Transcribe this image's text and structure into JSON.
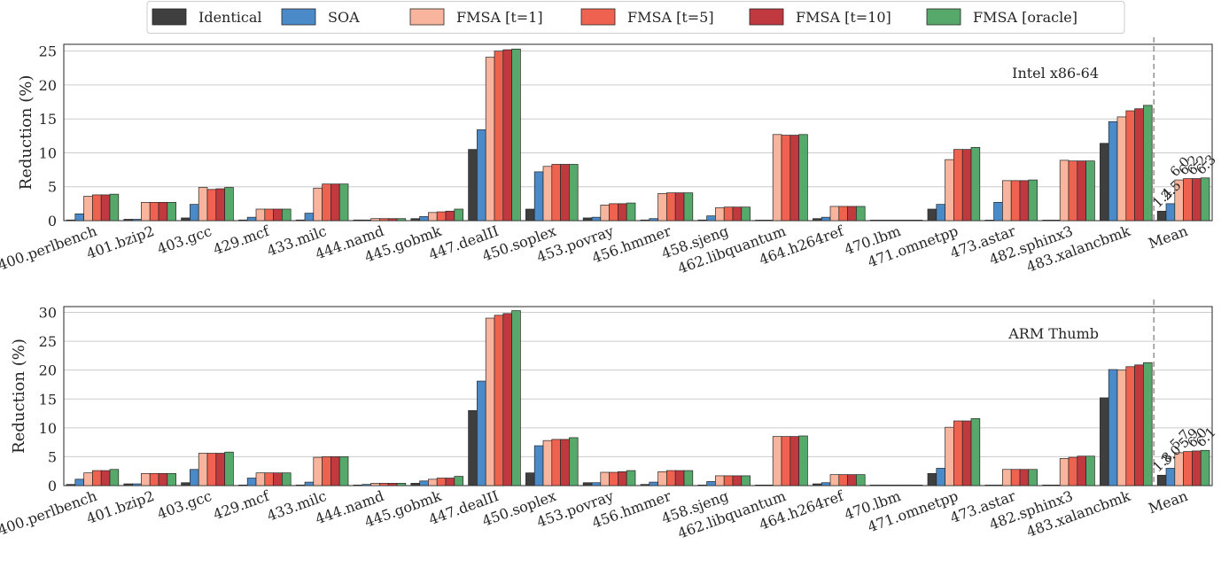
{
  "legend": {
    "items": [
      {
        "label": "Identical",
        "color": "#3f3f3f"
      },
      {
        "label": "SOA",
        "color": "#4a8ac9"
      },
      {
        "label": "FMSA [t=1]",
        "color": "#f8b49c"
      },
      {
        "label": "FMSA [t=5]",
        "color": "#ef6250"
      },
      {
        "label": "FMSA [t=10]",
        "color": "#c0393f"
      },
      {
        "label": "FMSA [oracle]",
        "color": "#56a86b"
      }
    ]
  },
  "chart_data": [
    {
      "type": "bar",
      "panel_label": "Intel x86-64",
      "ylabel": "Reduction (%)",
      "ylim": [
        0,
        26
      ],
      "yticks": [
        0,
        5,
        10,
        15,
        20,
        25
      ],
      "grid": true,
      "categories": [
        "400.perlbench",
        "401.bzip2",
        "403.gcc",
        "429.mcf",
        "433.milc",
        "444.namd",
        "445.gobmk",
        "447.dealII",
        "450.soplex",
        "453.povray",
        "456.hmmer",
        "458.sjeng",
        "462.libquantum",
        "464.h264ref",
        "470.lbm",
        "471.omnetpp",
        "473.astar",
        "482.sphinx3",
        "483.xalancbmk",
        "Mean"
      ],
      "series": [
        {
          "name": "Identical",
          "values": [
            0.1,
            0.2,
            0.4,
            0.1,
            0.1,
            0.1,
            0.3,
            10.5,
            1.7,
            0.4,
            0.1,
            0.1,
            0.0,
            0.3,
            0.0,
            1.7,
            0.0,
            0.0,
            11.4,
            1.4
          ]
        },
        {
          "name": "SOA",
          "values": [
            1.0,
            0.2,
            2.4,
            0.5,
            1.1,
            0.1,
            0.6,
            13.4,
            7.2,
            0.5,
            0.3,
            0.7,
            0.0,
            0.5,
            0.0,
            2.4,
            2.7,
            0.0,
            14.6,
            2.5
          ]
        },
        {
          "name": "FMSA [t=1]",
          "values": [
            3.6,
            2.7,
            4.9,
            1.7,
            4.8,
            0.3,
            1.2,
            24.1,
            8.0,
            2.3,
            4.0,
            1.9,
            12.7,
            2.1,
            0.0,
            9.0,
            5.9,
            8.9,
            15.3,
            6.0
          ]
        },
        {
          "name": "FMSA [t=5]",
          "values": [
            3.8,
            2.7,
            4.6,
            1.7,
            5.4,
            0.3,
            1.3,
            25.0,
            8.3,
            2.5,
            4.1,
            2.0,
            12.6,
            2.1,
            0.0,
            10.5,
            5.9,
            8.8,
            16.2,
            6.2
          ]
        },
        {
          "name": "FMSA [t=10]",
          "values": [
            3.8,
            2.7,
            4.7,
            1.7,
            5.4,
            0.3,
            1.4,
            25.2,
            8.3,
            2.5,
            4.1,
            2.0,
            12.6,
            2.1,
            0.0,
            10.5,
            5.9,
            8.8,
            16.5,
            6.2
          ]
        },
        {
          "name": "FMSA [oracle]",
          "values": [
            3.9,
            2.7,
            4.9,
            1.7,
            5.4,
            0.3,
            1.7,
            25.3,
            8.3,
            2.6,
            4.1,
            2.0,
            12.7,
            2.1,
            0.0,
            10.8,
            6.0,
            8.8,
            17.0,
            6.3
          ]
        }
      ],
      "mean_labels": [
        "1.4",
        "2.5",
        "6.0",
        "6.2",
        "6.2",
        "6.3"
      ]
    },
    {
      "type": "bar",
      "panel_label": "ARM Thumb",
      "ylabel": "Reduction (%)",
      "ylim": [
        0,
        31
      ],
      "yticks": [
        0,
        5,
        10,
        15,
        20,
        25,
        30
      ],
      "grid": true,
      "categories": [
        "400.perlbench",
        "401.bzip2",
        "403.gcc",
        "429.mcf",
        "433.milc",
        "444.namd",
        "445.gobmk",
        "447.dealII",
        "450.soplex",
        "453.povray",
        "456.hmmer",
        "458.sjeng",
        "462.libquantum",
        "464.h264ref",
        "470.lbm",
        "471.omnetpp",
        "473.astar",
        "482.sphinx3",
        "483.xalancbmk",
        "Mean"
      ],
      "series": [
        {
          "name": "Identical",
          "values": [
            0.2,
            0.3,
            0.5,
            0.1,
            0.1,
            0.1,
            0.4,
            13.0,
            2.2,
            0.5,
            0.2,
            0.1,
            0.1,
            0.3,
            0.0,
            2.1,
            0.0,
            0.1,
            15.2,
            1.8
          ]
        },
        {
          "name": "SOA",
          "values": [
            1.1,
            0.3,
            2.8,
            1.3,
            0.6,
            0.2,
            0.8,
            18.1,
            6.9,
            0.5,
            0.6,
            0.7,
            0.1,
            0.5,
            0.0,
            3.0,
            0.0,
            0.1,
            20.1,
            3.0
          ]
        },
        {
          "name": "FMSA [t=1]",
          "values": [
            2.2,
            2.1,
            5.6,
            2.2,
            4.9,
            0.4,
            1.1,
            29.0,
            7.8,
            2.3,
            2.4,
            1.7,
            8.5,
            1.9,
            0.0,
            10.1,
            2.8,
            4.7,
            20.0,
            5.7
          ]
        },
        {
          "name": "FMSA [t=5]",
          "values": [
            2.6,
            2.1,
            5.6,
            2.2,
            5.0,
            0.4,
            1.3,
            29.5,
            8.0,
            2.3,
            2.6,
            1.7,
            8.5,
            1.9,
            0.0,
            11.2,
            2.8,
            4.9,
            20.6,
            5.9
          ]
        },
        {
          "name": "FMSA [t=10]",
          "values": [
            2.6,
            2.1,
            5.6,
            2.2,
            5.0,
            0.4,
            1.3,
            29.8,
            8.0,
            2.4,
            2.6,
            1.7,
            8.5,
            1.9,
            0.0,
            11.2,
            2.8,
            5.1,
            20.9,
            6.0
          ]
        },
        {
          "name": "FMSA [oracle]",
          "values": [
            2.8,
            2.1,
            5.8,
            2.2,
            5.0,
            0.4,
            1.6,
            30.3,
            8.3,
            2.6,
            2.6,
            1.7,
            8.6,
            1.9,
            0.0,
            11.6,
            2.8,
            5.1,
            21.3,
            6.1
          ]
        }
      ],
      "mean_labels": [
        "1.8",
        "3.0",
        "5.7",
        "5.9",
        "6.0",
        "6.1"
      ]
    }
  ]
}
